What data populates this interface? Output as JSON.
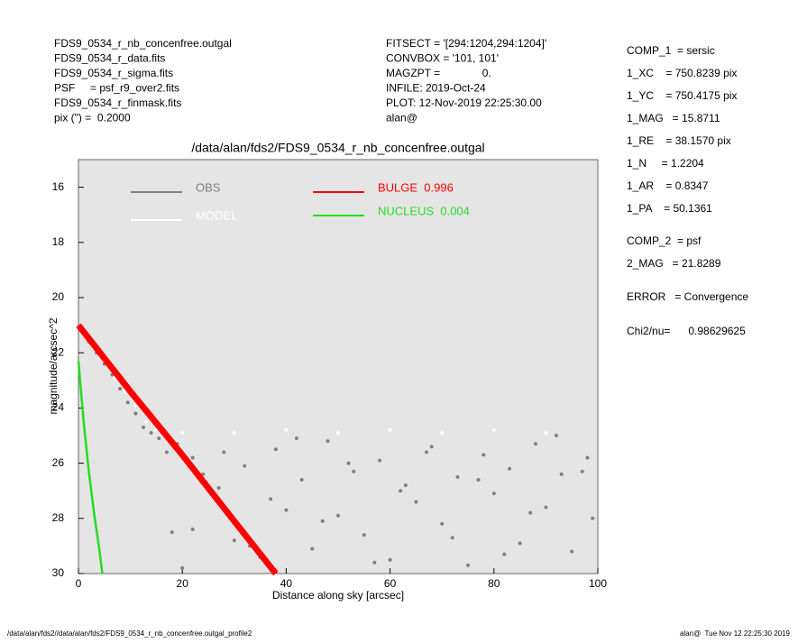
{
  "header": {
    "left": [
      "FDS9_0534_r_nb_concenfree.outgal",
      "FDS9_0534_r_data.fits",
      "FDS9_0534_r_sigma.fits",
      "PSF     = psf_r9_over2.fits",
      "FDS9_0534_r_finmask.fits",
      "pix (\") =  0.2000"
    ],
    "middle": [
      "FITSECT = '[294:1204,294:1204]'",
      "CONVBOX = '101, 101'",
      "MAGZPT =              0.",
      "INFILE: 2019-Oct-24",
      "PLOT: 12-Nov-2019 22:25:30.00",
      "alan@"
    ],
    "right": [
      "COMP_1  = sersic",
      "1_XC    = 750.8239 pix",
      "1_YC    = 750.4175 pix",
      "1_MAG   = 15.8711",
      "1_RE    = 38.1570 pix",
      "1_N     = 1.2204",
      "1_AR    = 0.8347",
      "1_PA    = 50.1361",
      "COMP_2  = psf",
      "2_MAG   = 21.8289",
      "ERROR   = Convergence",
      "Chi2/nu=      0.98629625"
    ]
  },
  "footer": {
    "left": "/data/alan/fds2//data/alan/fds2/FDS9_0534_r_nb_concenfree.outgal_profile2",
    "right": "alan@  Tue Nov 12 22:25:30 2019"
  },
  "chart_data": {
    "type": "scatter",
    "title": "/data/alan/fds2/FDS9_0534_r_nb_concenfree.outgal",
    "x_label": "Distance along sky [arcsec]",
    "y_label": "magnitude/arcsec^2",
    "xlim": [
      0,
      100
    ],
    "xticks": [
      0,
      20,
      40,
      60,
      80,
      100
    ],
    "ylim": [
      30,
      15
    ],
    "yticks": [
      16,
      18,
      20,
      22,
      24,
      26,
      28,
      30
    ],
    "series": [
      {
        "name": "OBS",
        "color": "#808080",
        "mode": "markers",
        "x": [
          0.5,
          2,
          3.5,
          5,
          6.5,
          8,
          9.5,
          11,
          12.5,
          14,
          15.5,
          17,
          18,
          19,
          20,
          22,
          24,
          26,
          28,
          30,
          32,
          35,
          38,
          40,
          43,
          45,
          48,
          50,
          53,
          55,
          58,
          60,
          63,
          65,
          68,
          70,
          73,
          75,
          78,
          80,
          83,
          85,
          88,
          90,
          93,
          95,
          98,
          99,
          22,
          27,
          33,
          37,
          42,
          47,
          52,
          57,
          62,
          67,
          72,
          77,
          82,
          87,
          92,
          97
        ],
        "values": [
          21.1,
          21.6,
          22.0,
          22.4,
          22.8,
          23.3,
          23.8,
          24.2,
          24.7,
          24.9,
          25.1,
          25.6,
          28.5,
          25.3,
          29.8,
          25.8,
          26.4,
          27.2,
          25.6,
          28.8,
          26.1,
          29.4,
          25.5,
          27.7,
          26.6,
          29.1,
          25.2,
          27.9,
          26.3,
          28.6,
          25.9,
          29.5,
          26.8,
          27.4,
          25.4,
          28.2,
          26.5,
          29.7,
          25.7,
          27.1,
          26.2,
          28.9,
          25.3,
          27.6,
          26.4,
          29.2,
          25.8,
          28.0,
          28.4,
          26.9,
          29.0,
          27.3,
          25.1,
          28.1,
          26.0,
          29.6,
          27.0,
          25.6,
          28.7,
          26.6,
          29.3,
          27.8,
          25.0,
          26.3
        ]
      },
      {
        "name": "MODEL",
        "color": "#ffffff",
        "mode": "markers",
        "x": [
          1,
          3,
          5,
          7,
          9,
          11,
          13,
          15,
          20,
          30,
          40,
          50,
          60,
          70,
          80,
          90
        ],
        "values": [
          21.2,
          21.8,
          22.3,
          22.9,
          23.4,
          23.9,
          24.5,
          24.8,
          24.9,
          24.9,
          24.8,
          24.9,
          24.8,
          24.9,
          24.8,
          24.9
        ]
      },
      {
        "name": "BULGE  0.996",
        "color": "#ff0000",
        "mode": "line",
        "x": [
          0,
          10,
          20,
          30,
          38
        ],
        "values": [
          21.0,
          23.4,
          25.7,
          28.1,
          30.0
        ]
      },
      {
        "name": "NUCLEUS  0.004",
        "color": "#22dd22",
        "mode": "line",
        "x": [
          0,
          1,
          2,
          3,
          4,
          4.6
        ],
        "values": [
          22.3,
          24.5,
          26.3,
          27.8,
          29.1,
          30.0
        ]
      }
    ]
  }
}
